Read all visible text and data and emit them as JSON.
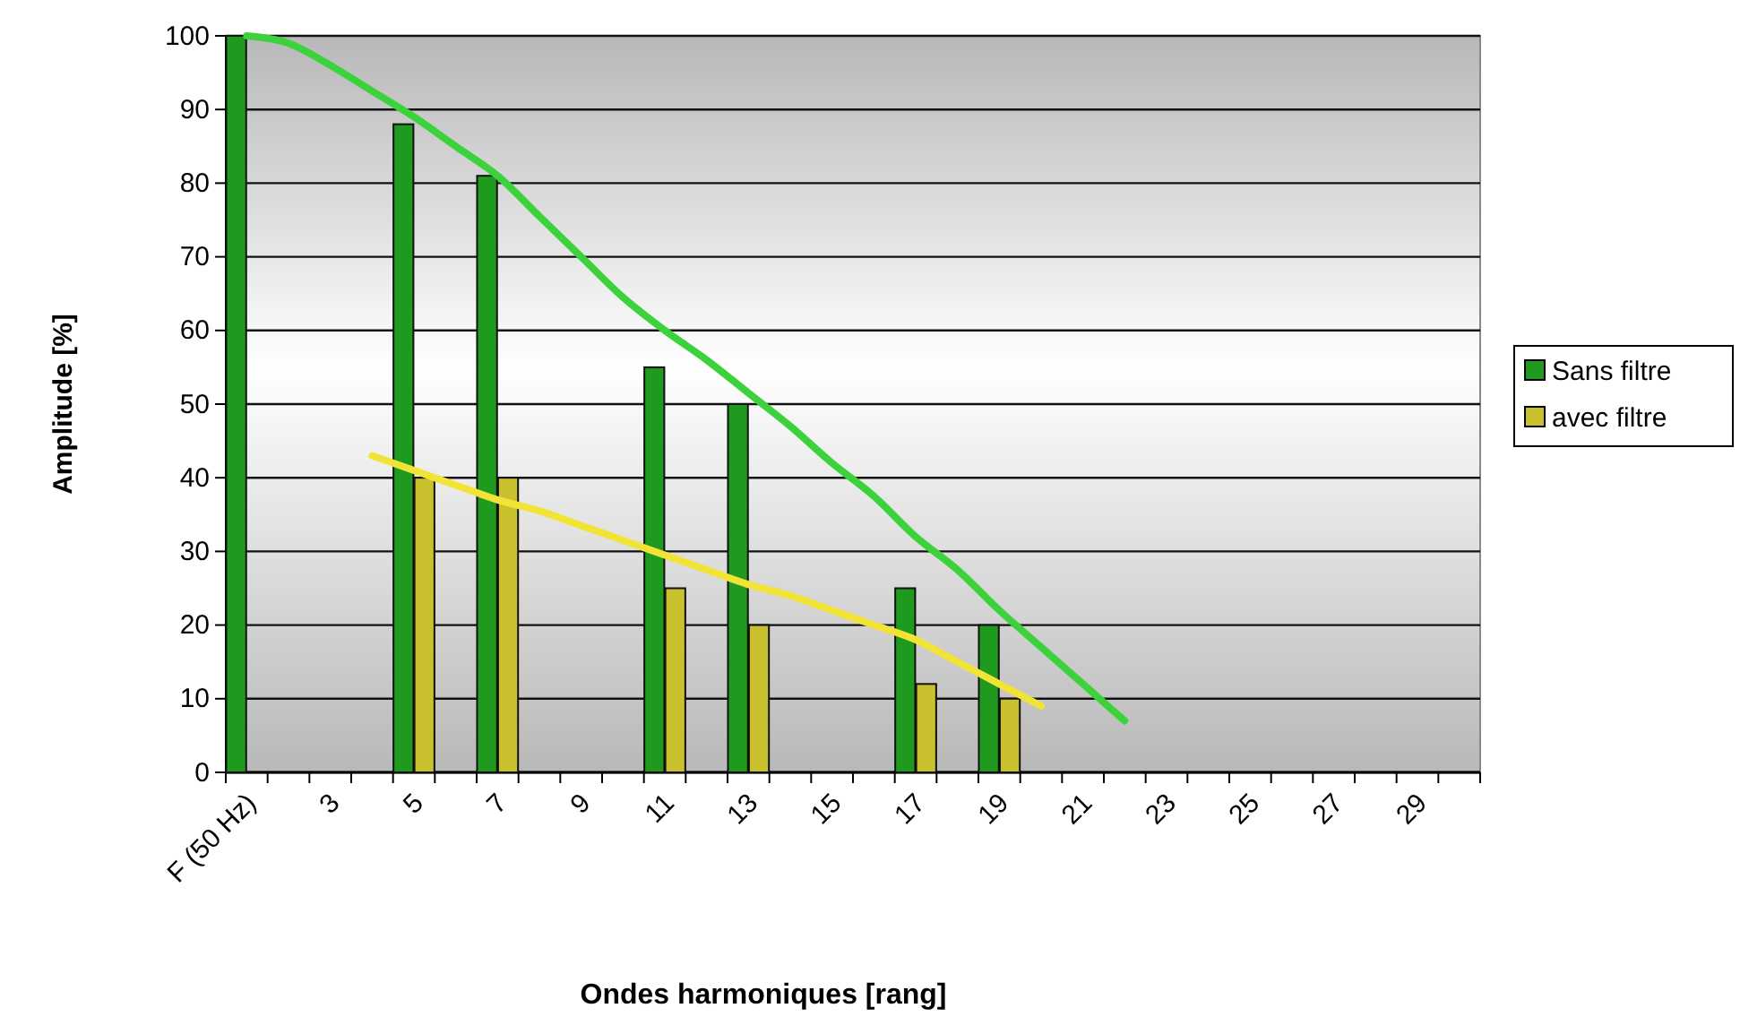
{
  "chart_data": {
    "type": "bar",
    "xlabel": "Ondes harmoniques [rang]",
    "ylabel": "Amplitude [%]",
    "categories": [
      "F (50 Hz)",
      null,
      "3",
      null,
      "5",
      null,
      "7",
      null,
      "9",
      null,
      "11",
      null,
      "13",
      null,
      "15",
      null,
      "17",
      null,
      "19",
      null,
      "21",
      null,
      "23",
      null,
      "25",
      null,
      "27",
      null,
      "29",
      null
    ],
    "series": [
      {
        "name": "Sans filtre",
        "color": "#1f9a1f",
        "values": [
          100,
          null,
          null,
          null,
          88,
          null,
          81,
          null,
          null,
          null,
          55,
          null,
          50,
          null,
          null,
          null,
          25,
          null,
          20,
          null,
          null,
          null,
          null,
          null,
          null,
          null,
          null,
          null,
          null,
          null
        ]
      },
      {
        "name": "avec filtre",
        "color": "#c9c02e",
        "values": [
          null,
          null,
          null,
          null,
          40,
          null,
          40,
          null,
          null,
          null,
          25,
          null,
          20,
          null,
          null,
          null,
          12,
          null,
          10,
          null,
          null,
          null,
          null,
          null,
          null,
          null,
          null,
          null,
          null,
          null
        ]
      },
      {
        "type": "line",
        "color": "#3cd23c",
        "values": [
          100,
          99,
          96,
          92.5,
          89,
          85,
          81,
          75.5,
          70,
          64.5,
          60,
          56,
          51.5,
          47,
          42,
          37.5,
          32,
          27.5,
          22,
          17,
          12,
          7,
          null,
          null,
          null,
          null,
          null,
          null,
          null,
          null
        ]
      },
      {
        "type": "line",
        "color": "#f2e436",
        "values": [
          null,
          null,
          null,
          43,
          41,
          39,
          37,
          35.5,
          33.5,
          31.5,
          29.5,
          27.5,
          25.5,
          24,
          22,
          20,
          18,
          15,
          12,
          9,
          null,
          null,
          null,
          null,
          null,
          null,
          null,
          null,
          null,
          null
        ]
      }
    ],
    "ylim": [
      0,
      100
    ],
    "yticks": [
      0,
      10,
      20,
      30,
      40,
      50,
      60,
      70,
      80,
      90,
      100
    ],
    "grid": "y",
    "legend": "right"
  }
}
